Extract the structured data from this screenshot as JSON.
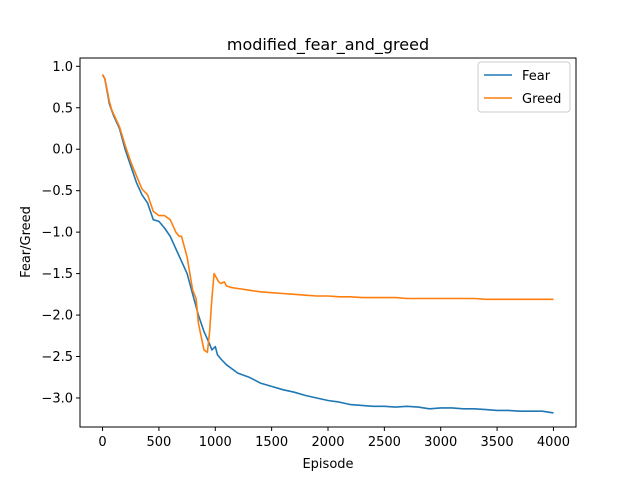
{
  "chart_data": {
    "type": "line",
    "title": "modified_fear_and_greed",
    "xlabel": "Episode",
    "ylabel": "Fear/Greed",
    "xlim": [
      -200,
      4200
    ],
    "ylim": [
      -3.35,
      1.1
    ],
    "xticks": [
      0,
      500,
      1000,
      1500,
      2000,
      2500,
      3000,
      3500,
      4000
    ],
    "xtick_labels": [
      "0",
      "500",
      "1000",
      "1500",
      "2000",
      "2500",
      "3000",
      "3500",
      "4000"
    ],
    "yticks": [
      1.0,
      0.5,
      0.0,
      -0.5,
      -1.0,
      -1.5,
      -2.0,
      -2.5,
      -3.0
    ],
    "ytick_labels": [
      "1.0",
      "0.5",
      "0.0",
      "−0.5",
      "−1.0",
      "−1.5",
      "−2.0",
      "−2.5",
      "−3.0"
    ],
    "grid": false,
    "legend_position": "top-right",
    "series": [
      {
        "name": "Fear",
        "color": "#1f77b4",
        "x": [
          0,
          20,
          40,
          60,
          80,
          100,
          150,
          200,
          250,
          300,
          350,
          400,
          450,
          500,
          550,
          600,
          650,
          700,
          750,
          800,
          850,
          900,
          950,
          970,
          1000,
          1020,
          1050,
          1100,
          1150,
          1200,
          1300,
          1400,
          1500,
          1600,
          1700,
          1800,
          1900,
          2000,
          2100,
          2200,
          2300,
          2400,
          2500,
          2600,
          2700,
          2800,
          2900,
          3000,
          3100,
          3200,
          3300,
          3400,
          3500,
          3600,
          3700,
          3800,
          3900,
          4000
        ],
        "y": [
          0.9,
          0.85,
          0.7,
          0.55,
          0.47,
          0.4,
          0.25,
          0.0,
          -0.2,
          -0.4,
          -0.55,
          -0.65,
          -0.85,
          -0.87,
          -0.95,
          -1.05,
          -1.2,
          -1.35,
          -1.5,
          -1.75,
          -2.0,
          -2.2,
          -2.35,
          -2.42,
          -2.38,
          -2.48,
          -2.53,
          -2.6,
          -2.65,
          -2.7,
          -2.75,
          -2.82,
          -2.86,
          -2.9,
          -2.93,
          -2.97,
          -3.0,
          -3.03,
          -3.05,
          -3.08,
          -3.09,
          -3.1,
          -3.1,
          -3.11,
          -3.1,
          -3.11,
          -3.13,
          -3.12,
          -3.12,
          -3.13,
          -3.13,
          -3.14,
          -3.15,
          -3.15,
          -3.16,
          -3.16,
          -3.16,
          -3.18
        ]
      },
      {
        "name": "Greed",
        "color": "#ff7f0e",
        "x": [
          0,
          20,
          40,
          60,
          80,
          100,
          150,
          200,
          250,
          300,
          350,
          400,
          450,
          500,
          550,
          600,
          650,
          680,
          700,
          750,
          800,
          830,
          850,
          900,
          930,
          950,
          970,
          990,
          1010,
          1030,
          1050,
          1080,
          1100,
          1150,
          1200,
          1300,
          1400,
          1500,
          1600,
          1700,
          1800,
          1900,
          2000,
          2100,
          2200,
          2300,
          2400,
          2500,
          2600,
          2700,
          2800,
          2900,
          3000,
          3100,
          3200,
          3300,
          3400,
          3500,
          3600,
          3700,
          3800,
          3900,
          4000
        ],
        "y": [
          0.9,
          0.85,
          0.72,
          0.58,
          0.48,
          0.42,
          0.27,
          0.05,
          -0.15,
          -0.32,
          -0.48,
          -0.55,
          -0.75,
          -0.8,
          -0.8,
          -0.85,
          -1.0,
          -1.05,
          -1.05,
          -1.3,
          -1.7,
          -1.8,
          -2.1,
          -2.42,
          -2.45,
          -2.2,
          -1.8,
          -1.5,
          -1.55,
          -1.6,
          -1.62,
          -1.6,
          -1.65,
          -1.67,
          -1.68,
          -1.7,
          -1.72,
          -1.73,
          -1.74,
          -1.75,
          -1.76,
          -1.77,
          -1.77,
          -1.78,
          -1.78,
          -1.79,
          -1.79,
          -1.79,
          -1.79,
          -1.8,
          -1.8,
          -1.8,
          -1.8,
          -1.8,
          -1.8,
          -1.8,
          -1.81,
          -1.81,
          -1.81,
          -1.81,
          -1.81,
          -1.81,
          -1.81
        ]
      }
    ]
  }
}
